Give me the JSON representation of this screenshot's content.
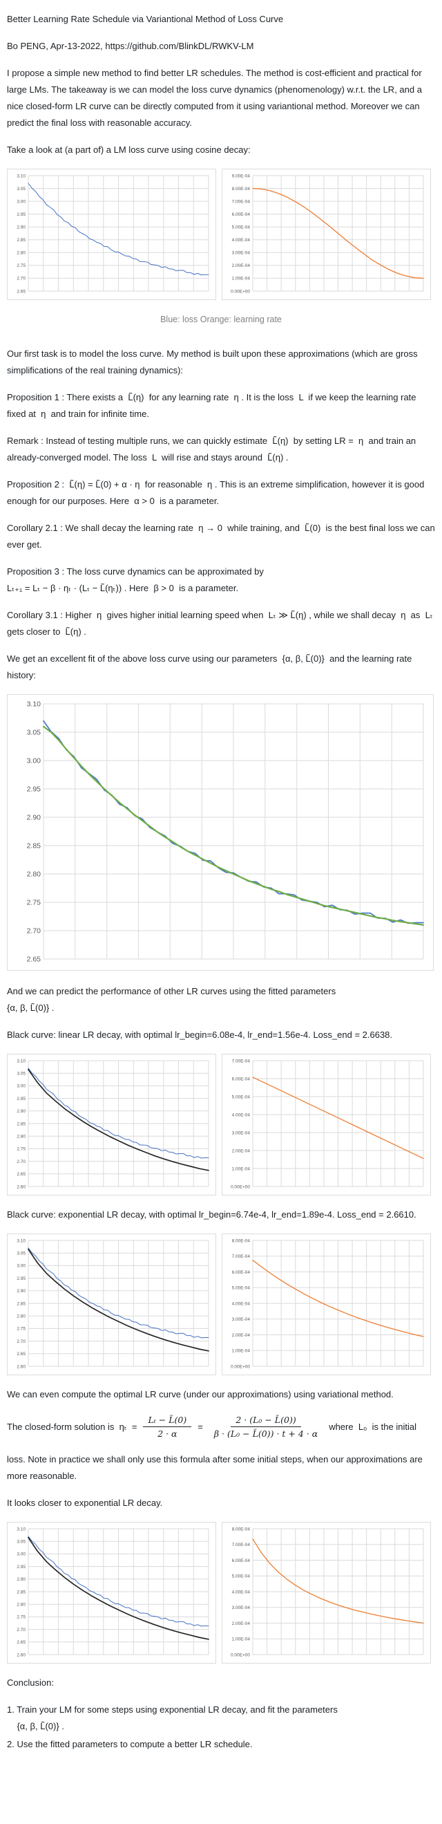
{
  "document": {
    "title": "Better Learning Rate Schedule via Variantional Method of Loss Curve",
    "byline": "Bo PENG, Apr-13-2022, https://github.com/BlinkDL/RWKV-LM",
    "intro": "I propose a simple new method to find better LR schedules. The method is cost-efficient and practical for large LMs. The takeaway is we can model the loss curve dynamics (phenomenology) w.r.t. the LR, and a nice closed-form LR curve can be directly computed from it using variantional method. Moreover we can predict the final loss with reasonable accuracy.",
    "take_a_look": "Take a look at (a part of) a LM loss curve using cosine decay:",
    "caption": "Blue: loss Orange: learning rate",
    "first_task": "Our first task is to model the loss curve. My method is built upon these approximations (which are gross simplifications of the real training dynamics):",
    "prop1": "Proposition 1 : There exists a  L̃(η)  for any learning rate  η . It is the loss  L  if we keep the learning rate fixed at  η  and train for infinite time.",
    "remark": "Remark : Instead of testing multiple runs, we can quickly estimate  L̃(η)  by setting LR =  η  and train an already-converged model. The loss  L  will rise and stays around  L̃(η) .",
    "prop2": "Proposition 2 :  L̃(η) = L̃(0) + α · η  for reasonable  η . This is an extreme simplification, however it is good enough for our purposes. Here  α > 0  is a parameter.",
    "cor21": "Corollary 2.1 : We shall decay the learning rate  η → 0  while training, and  L̃(0)  is the best final loss we can ever get.",
    "prop3": "Proposition 3 : The loss curve dynamics can be approximated by\nLₜ₊₁ = Lₜ − β · ηₜ · (Lₜ − L̃(ηₜ)) . Here  β > 0  is a parameter.",
    "cor31": "Corollary 3.1 : Higher  η  gives higher initial learning speed when  Lₜ ≫ L̃(η) , while we shall decay  η  as  Lₜ  gets closer to  L̃(η) .",
    "excellent_fit": "We get an excellent fit of the above loss curve using our parameters  {α, β, L̃(0)}  and the learning rate history:",
    "predict": "And we can predict the performance of other LR curves using the fitted parameters\n{α, β, L̃(0)} .",
    "black_linear": "Black curve: linear LR decay, with optimal lr_begin=6.08e-4, lr_end=1.56e-4. Loss_end = 2.6638.",
    "black_exp": "Black curve: exponential LR decay, with optimal lr_begin=6.74e-4, lr_end=1.89e-4. Loss_end = 2.6610.",
    "variational": "We can even compute the optimal LR curve (under our approximations) using variational method.",
    "closed_form": {
      "prefix": "The closed-form solution is  ηₜ  =",
      "frac1_num": "Lₜ − L̃(0)",
      "frac1_den": "2 · α",
      "equals": "=",
      "frac2_num": "2 · (L₀ − L̃(0))",
      "frac2_den": "β · (L₀ − L̃(0)) · t + 4 · α",
      "suffix": "where  L₀  is the initial",
      "rest": "loss. Note in practice we shall only use this formula after some initial steps, when our approximations are more reasonable."
    },
    "looks_closer": "It looks closer to exponential LR decay.",
    "conclusion_heading": "Conclusion:",
    "conclusion_1": "1. Train your LM for some steps using exponential LR decay, and fit the parameters\n    {α, β, L̃(0)} .",
    "conclusion_2": "2. Use the fitted parameters to compute a better LR schedule."
  },
  "colors": {
    "loss_blue": "#4472c4",
    "lr_orange": "#ed7d31",
    "fit_green": "#70ad47",
    "pred_black": "#262626",
    "grid": "#dadada",
    "tick_text": "#595959"
  },
  "series_bank": {
    "loss_cosine": [
      3.07,
      3.051,
      3.039,
      3.019,
      3.007,
      2.987,
      2.977,
      2.967,
      2.948,
      2.939,
      2.923,
      2.917,
      2.903,
      2.897,
      2.882,
      2.874,
      2.867,
      2.854,
      2.849,
      2.84,
      2.836,
      2.824,
      2.823,
      2.811,
      2.803,
      2.802,
      2.794,
      2.787,
      2.786,
      2.777,
      2.775,
      2.765,
      2.765,
      2.763,
      2.754,
      2.752,
      2.75,
      2.742,
      2.745,
      2.737,
      2.736,
      2.729,
      2.731,
      2.731,
      2.722,
      2.722,
      2.715,
      2.719,
      2.713,
      2.714,
      2.714
    ],
    "loss_fit": [
      3.06,
      3.05,
      3.036,
      3.02,
      3.005,
      2.99,
      2.976,
      2.963,
      2.95,
      2.938,
      2.926,
      2.915,
      2.904,
      2.894,
      2.884,
      2.874,
      2.865,
      2.857,
      2.848,
      2.84,
      2.833,
      2.826,
      2.819,
      2.812,
      2.806,
      2.8,
      2.794,
      2.788,
      2.783,
      2.778,
      2.773,
      2.769,
      2.764,
      2.76,
      2.756,
      2.752,
      2.748,
      2.744,
      2.741,
      2.738,
      2.735,
      2.732,
      2.729,
      2.726,
      2.723,
      2.721,
      2.718,
      2.716,
      2.714,
      2.712,
      2.71
    ],
    "lr_cosine": [
      0.0008,
      0.000796,
      0.000783,
      0.000762,
      0.000733,
      0.000697,
      0.000656,
      0.000609,
      0.000558,
      0.000505,
      0.00045,
      0.000395,
      0.000342,
      0.000291,
      0.000242,
      0.000203,
      0.000167,
      0.000138,
      0.000117,
      0.000104,
      0.0001
    ],
    "pred_linear": [
      3.065,
      3.014,
      2.972,
      2.94,
      2.91,
      2.884,
      2.86,
      2.838,
      2.818,
      2.799,
      2.782,
      2.765,
      2.75,
      2.736,
      2.722,
      2.71,
      2.699,
      2.689,
      2.68,
      2.671,
      2.664
    ],
    "lr_linear": [
      0.000608,
      0.000156
    ],
    "pred_exp": [
      3.065,
      3.012,
      2.97,
      2.937,
      2.907,
      2.88,
      2.856,
      2.834,
      2.814,
      2.795,
      2.778,
      2.761,
      2.746,
      2.732,
      2.719,
      2.707,
      2.696,
      2.686,
      2.677,
      2.668,
      2.661
    ],
    "lr_exp": [
      0.000674,
      0.000633,
      0.000594,
      0.000557,
      0.000523,
      0.000491,
      0.00046,
      0.000432,
      0.000405,
      0.00038,
      0.000357,
      0.000335,
      0.000314,
      0.000295,
      0.000277,
      0.00026,
      0.000244,
      0.000229,
      0.000215,
      0.000201,
      0.000189
    ],
    "lr_var": [
      0.000735,
      0.000648,
      0.00058,
      0.000524,
      0.000479,
      0.000441,
      0.000408,
      0.000381,
      0.000356,
      0.000334,
      0.000315,
      0.000298,
      0.000282,
      0.000269,
      0.000256,
      0.000245,
      0.000234,
      0.000225,
      0.000216,
      0.000208,
      0.0002
    ]
  },
  "chart_data": [
    {
      "id": "loss-cosine",
      "type": "line",
      "title": "",
      "xlabel": "",
      "ylabel": "",
      "ylim": [
        2.65,
        3.1
      ],
      "grid": true,
      "xdivs": 12,
      "yticks": [
        "3.10",
        "3.05",
        "3.00",
        "2.95",
        "2.90",
        "2.85",
        "2.80",
        "2.75",
        "2.70",
        "2.65"
      ],
      "series": [
        {
          "name": "loss (cosine decay run)",
          "bank": "loss_cosine",
          "color": "#4472c4",
          "w": 1.0
        }
      ]
    },
    {
      "id": "lr-cosine",
      "type": "line",
      "title": "",
      "xlabel": "",
      "ylabel": "",
      "ylim": [
        0,
        0.0009
      ],
      "grid": true,
      "xdivs": 12,
      "yticks": [
        "9.00E-04",
        "8.00E-04",
        "7.00E-04",
        "6.00E-04",
        "5.00E-04",
        "4.00E-04",
        "3.00E-04",
        "2.00E-04",
        "1.00E-04",
        "0.00E+00"
      ],
      "series": [
        {
          "name": "learning rate (cosine decay 8e-4 to 1e-4)",
          "bank": "lr_cosine",
          "color": "#ed7d31",
          "w": 1.3
        }
      ]
    },
    {
      "id": "loss-fit-large",
      "type": "line",
      "title": "",
      "xlabel": "",
      "ylabel": "",
      "ylim": [
        2.65,
        3.1
      ],
      "grid": true,
      "xdivs": 12,
      "yticks": [
        "3.10",
        "3.05",
        "3.00",
        "2.95",
        "2.90",
        "2.85",
        "2.80",
        "2.75",
        "2.70",
        "2.65"
      ],
      "series": [
        {
          "name": "loss (actual)",
          "bank": "loss_cosine",
          "color": "#4472c4",
          "w": 1.7
        },
        {
          "name": "model fit {α, β, L̃(0)}",
          "bank": "loss_fit",
          "color": "#70ad47",
          "w": 2.2
        }
      ]
    },
    {
      "id": "loss-linear",
      "type": "line",
      "title": "",
      "xlabel": "",
      "ylabel": "",
      "ylim": [
        2.6,
        3.1
      ],
      "grid": true,
      "xdivs": 12,
      "yticks": [
        "3.10",
        "3.05",
        "3.00",
        "2.95",
        "2.90",
        "2.85",
        "2.80",
        "2.75",
        "2.70",
        "2.65",
        "2.60"
      ],
      "series": [
        {
          "name": "loss (cosine run)",
          "bank": "loss_cosine",
          "color": "#4472c4",
          "w": 1.0
        },
        {
          "name": "predicted loss, linear LR decay (Loss_end 2.6638)",
          "bank": "pred_linear",
          "color": "#262626",
          "w": 1.7
        }
      ]
    },
    {
      "id": "lr-linear",
      "type": "line",
      "title": "",
      "xlabel": "",
      "ylabel": "",
      "ylim": [
        0,
        0.0007
      ],
      "grid": true,
      "xdivs": 12,
      "yticks": [
        "7.00E-04",
        "6.00E-04",
        "5.00E-04",
        "4.00E-04",
        "3.00E-04",
        "2.00E-04",
        "1.00E-04",
        "0.00E+00"
      ],
      "series": [
        {
          "name": "linear LR decay 6.08e-4 to 1.56e-4",
          "bank": "lr_linear",
          "color": "#ed7d31",
          "w": 1.3
        }
      ]
    },
    {
      "id": "loss-exponential",
      "type": "line",
      "title": "",
      "xlabel": "",
      "ylabel": "",
      "ylim": [
        2.6,
        3.1
      ],
      "grid": true,
      "xdivs": 12,
      "yticks": [
        "3.10",
        "3.05",
        "3.00",
        "2.95",
        "2.90",
        "2.85",
        "2.80",
        "2.75",
        "2.70",
        "2.65",
        "2.60"
      ],
      "series": [
        {
          "name": "loss (cosine run)",
          "bank": "loss_cosine",
          "color": "#4472c4",
          "w": 1.0
        },
        {
          "name": "predicted loss, exponential LR decay (Loss_end 2.6610)",
          "bank": "pred_exp",
          "color": "#262626",
          "w": 1.7
        }
      ]
    },
    {
      "id": "lr-exponential",
      "type": "line",
      "title": "",
      "xlabel": "",
      "ylabel": "",
      "ylim": [
        0,
        0.0008
      ],
      "grid": true,
      "xdivs": 12,
      "yticks": [
        "8.00E-04",
        "7.00E-04",
        "6.00E-04",
        "5.00E-04",
        "4.00E-04",
        "3.00E-04",
        "2.00E-04",
        "1.00E-04",
        "0.00E+00"
      ],
      "series": [
        {
          "name": "exponential LR decay 6.74e-4 to 1.89e-4",
          "bank": "lr_exp",
          "color": "#ed7d31",
          "w": 1.3
        }
      ]
    },
    {
      "id": "loss-variational",
      "type": "line",
      "title": "",
      "xlabel": "",
      "ylabel": "",
      "ylim": [
        2.6,
        3.1
      ],
      "grid": true,
      "xdivs": 12,
      "yticks": [
        "3.10",
        "3.05",
        "3.00",
        "2.95",
        "2.90",
        "2.85",
        "2.80",
        "2.75",
        "2.70",
        "2.65",
        "2.60"
      ],
      "series": [
        {
          "name": "loss (cosine run)",
          "bank": "loss_cosine",
          "color": "#4472c4",
          "w": 1.0
        },
        {
          "name": "predicted loss, variational optimal LR",
          "bank": "pred_exp",
          "color": "#262626",
          "w": 1.7
        }
      ]
    },
    {
      "id": "lr-variational",
      "type": "line",
      "title": "",
      "xlabel": "",
      "ylabel": "",
      "ylim": [
        0,
        0.0008
      ],
      "grid": true,
      "xdivs": 12,
      "yticks": [
        "8.00E-04",
        "7.00E-04",
        "6.00E-04",
        "5.00E-04",
        "4.00E-04",
        "3.00E-04",
        "2.00E-04",
        "1.00E-04",
        "0.00E+00"
      ],
      "series": [
        {
          "name": "variational optimal LR curve (closed form)",
          "bank": "lr_var",
          "color": "#ed7d31",
          "w": 1.3
        }
      ]
    }
  ]
}
